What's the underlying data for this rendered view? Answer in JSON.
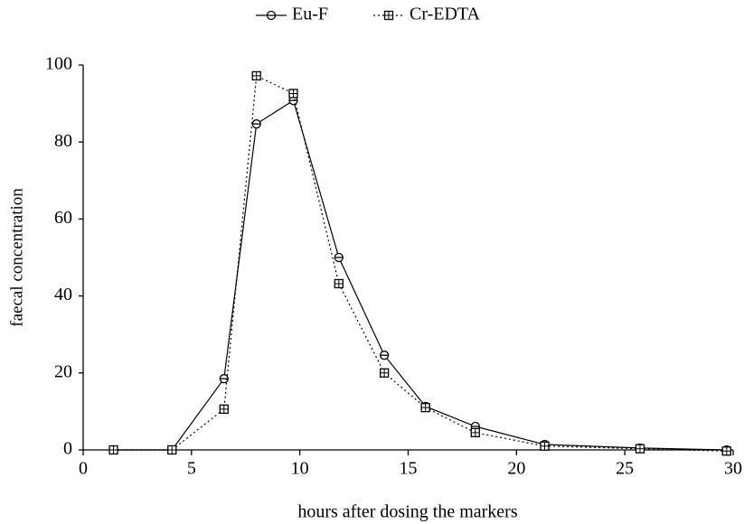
{
  "chart_data": {
    "type": "line",
    "x_label": "hours after dosing the markers",
    "y_label": "faecal concentration",
    "xlim": [
      0,
      30
    ],
    "xticks": [
      0,
      5,
      10,
      15,
      20,
      25,
      30
    ],
    "ylim": [
      0,
      100
    ],
    "yticks": [
      0,
      20,
      40,
      60,
      80,
      100
    ],
    "grid": false,
    "legend": "top",
    "series": [
      {
        "name": "Eu-F",
        "color": "#000000",
        "marker": "circle",
        "dash": "solid",
        "x": [
          1.4,
          4.1,
          6.5,
          8.0,
          9.7,
          11.8,
          13.9,
          15.8,
          18.1,
          21.3,
          25.7,
          29.7
        ],
        "values": [
          0,
          0,
          18.5,
          84.7,
          90.8,
          50,
          24.6,
          11.3,
          6.1,
          1.4,
          0.5,
          0
        ]
      },
      {
        "name": "Cr-EDTA",
        "color": "#000000",
        "marker": "square",
        "dash": "dotted",
        "x": [
          1.4,
          4.1,
          6.5,
          8.0,
          9.7,
          11.8,
          13.9,
          15.8,
          18.1,
          21.3,
          25.7,
          29.7
        ],
        "values": [
          0,
          0,
          10.6,
          97.2,
          92.6,
          43.2,
          20,
          11,
          4.5,
          1,
          0.3,
          -0.3
        ]
      }
    ]
  }
}
